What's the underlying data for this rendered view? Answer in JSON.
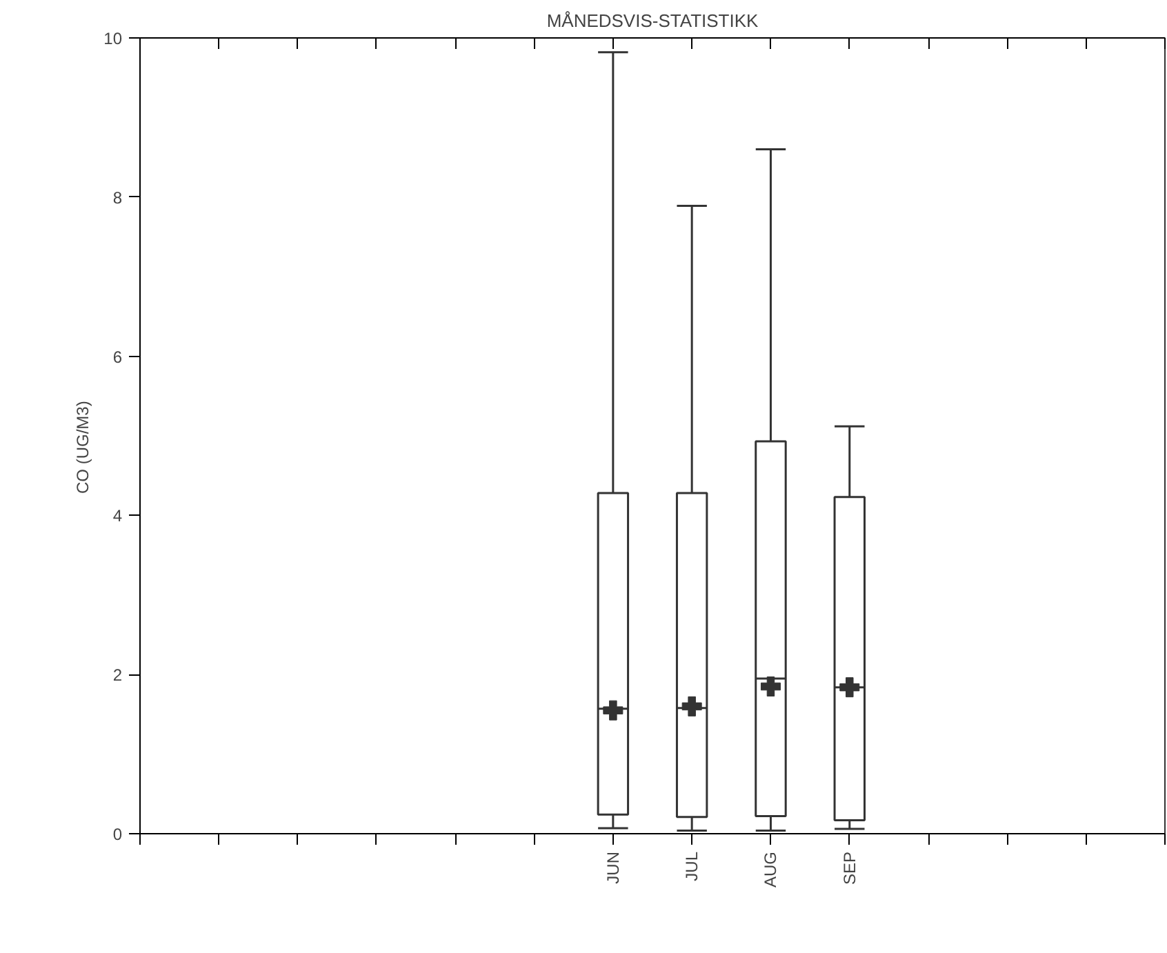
{
  "chart_data": {
    "type": "box",
    "title": "MÅNEDSVIS-STATISTIKK",
    "ylabel": "CO      (UG/M3)",
    "categories": [
      null,
      null,
      null,
      null,
      null,
      "JUN",
      "JUL",
      "AUG",
      "SEP",
      null,
      null,
      null
    ],
    "boxes": [
      null,
      null,
      null,
      null,
      null,
      {
        "low": 0.07,
        "q1": 0.24,
        "median": 1.57,
        "q3": 4.28,
        "high": 9.82,
        "mean": 1.55
      },
      {
        "low": 0.04,
        "q1": 0.21,
        "median": 1.58,
        "q3": 4.28,
        "high": 7.89,
        "mean": 1.6
      },
      {
        "low": 0.04,
        "q1": 0.22,
        "median": 1.95,
        "q3": 4.93,
        "high": 8.6,
        "mean": 1.85
      },
      {
        "low": 0.06,
        "q1": 0.17,
        "median": 1.84,
        "q3": 4.23,
        "high": 5.12,
        "mean": 1.84
      },
      null,
      null,
      null
    ],
    "ylim": [
      0,
      10
    ],
    "yticks": [
      0,
      2,
      4,
      6,
      8,
      10
    ],
    "grid": false,
    "marker": "cross"
  }
}
